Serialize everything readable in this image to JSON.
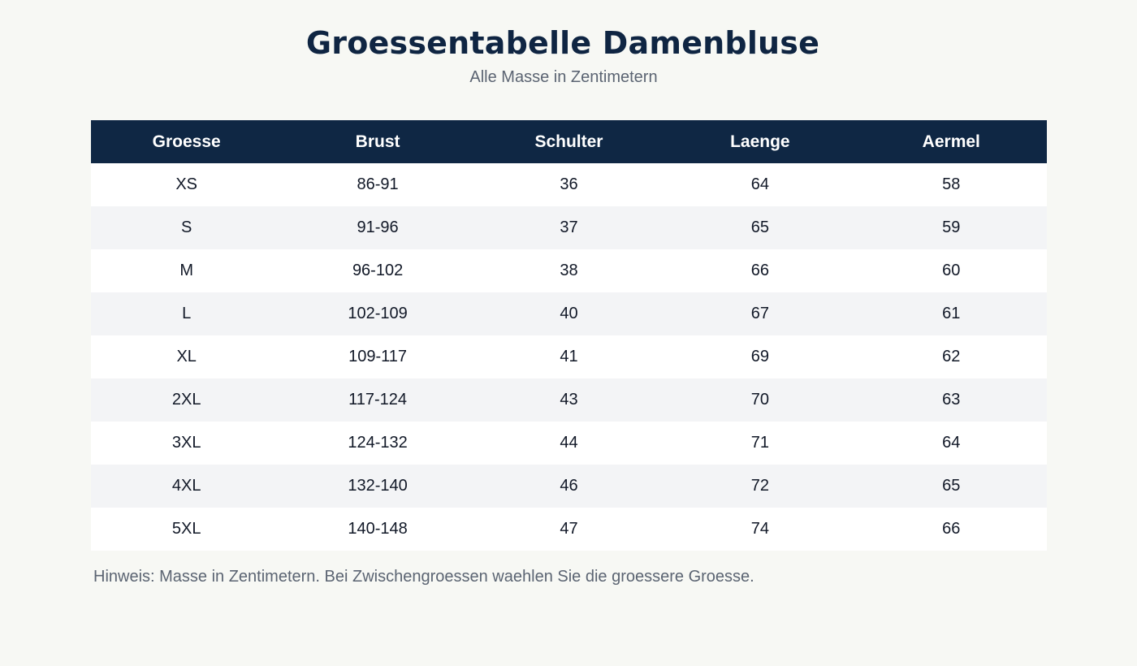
{
  "header": {
    "title": "Groessentabelle Damenbluse",
    "subtitle": "Alle Masse in Zentimetern"
  },
  "table": {
    "columns": [
      "Groesse",
      "Brust",
      "Schulter",
      "Laenge",
      "Aermel"
    ],
    "rows": [
      [
        "XS",
        "86-91",
        "36",
        "64",
        "58"
      ],
      [
        "S",
        "91-96",
        "37",
        "65",
        "59"
      ],
      [
        "M",
        "96-102",
        "38",
        "66",
        "60"
      ],
      [
        "L",
        "102-109",
        "40",
        "67",
        "61"
      ],
      [
        "XL",
        "109-117",
        "41",
        "69",
        "62"
      ],
      [
        "2XL",
        "117-124",
        "43",
        "70",
        "63"
      ],
      [
        "3XL",
        "124-132",
        "44",
        "71",
        "64"
      ],
      [
        "4XL",
        "132-140",
        "46",
        "72",
        "65"
      ],
      [
        "5XL",
        "140-148",
        "47",
        "74",
        "66"
      ]
    ]
  },
  "note": "Hinweis: Masse in Zentimetern. Bei Zwischengroessen waehlen Sie die groessere Groesse.",
  "colors": {
    "header_bg": "#0f2744",
    "title": "#0f2542",
    "row_alt": "#f3f4f6",
    "page_bg": "#f7f8f4"
  }
}
